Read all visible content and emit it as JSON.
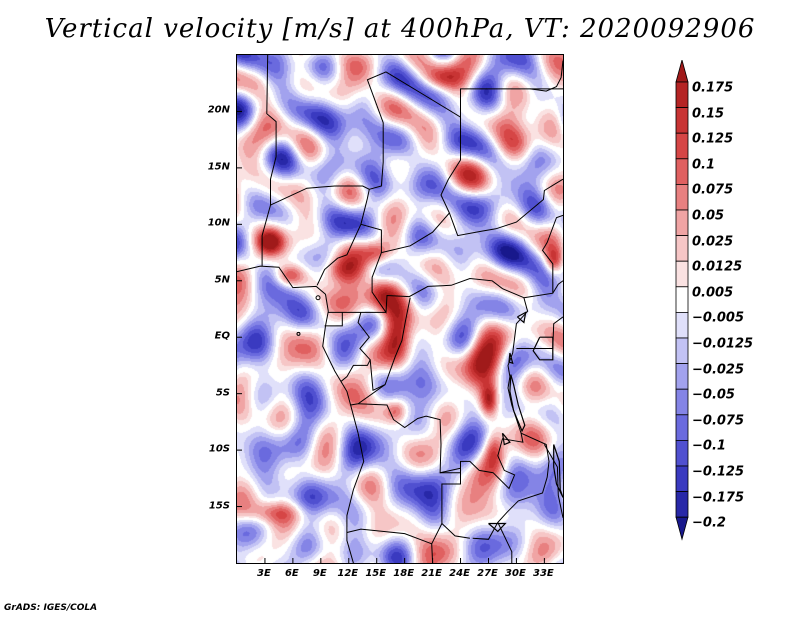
{
  "title": "Vertical velocity [m/s] at 400hPa, VT: 2020092906",
  "credit": "GrADS: IGES/COLA",
  "map": {
    "projection": "latlon",
    "lon_range": [
      0,
      35
    ],
    "lat_range": [
      -20,
      25
    ],
    "lat_ticks": [
      {
        "label": "20N",
        "value": 20
      },
      {
        "label": "15N",
        "value": 15
      },
      {
        "label": "10N",
        "value": 10
      },
      {
        "label": "5N",
        "value": 5
      },
      {
        "label": "EQ",
        "value": 0
      },
      {
        "label": "5S",
        "value": -5
      },
      {
        "label": "10S",
        "value": -10
      },
      {
        "label": "15S",
        "value": -15
      }
    ],
    "lon_ticks": [
      {
        "label": "3E",
        "value": 3
      },
      {
        "label": "6E",
        "value": 6
      },
      {
        "label": "9E",
        "value": 9
      },
      {
        "label": "12E",
        "value": 12
      },
      {
        "label": "15E",
        "value": 15
      },
      {
        "label": "18E",
        "value": 18
      },
      {
        "label": "21E",
        "value": 21
      },
      {
        "label": "24E",
        "value": 24
      },
      {
        "label": "27E",
        "value": 27
      },
      {
        "label": "30E",
        "value": 30
      },
      {
        "label": "33E",
        "value": 33
      }
    ]
  },
  "colorbar": {
    "labels": [
      "0.175",
      "0.15",
      "0.125",
      "0.1",
      "0.075",
      "0.05",
      "0.025",
      "0.0125",
      "0.005",
      "−0.005",
      "−0.0125",
      "−0.025",
      "−0.05",
      "−0.075",
      "−0.1",
      "−0.125",
      "−0.175",
      "−0.2"
    ],
    "colors": [
      "#a01a1a",
      "#b52424",
      "#c83434",
      "#d64646",
      "#e06060",
      "#e88080",
      "#f0a4a4",
      "#f6c6c6",
      "#fae2e2",
      "#ffffff",
      "#e0e0fa",
      "#c2c2f4",
      "#a2a2ee",
      "#8484e6",
      "#6a6ade",
      "#5050d0",
      "#3a3ac0",
      "#2828a8",
      "#18188c"
    ]
  },
  "features": {
    "positive_regions": [
      {
        "lon": 26.5,
        "lat": -1.8,
        "rx": 2.3,
        "ry": 2.0,
        "strength": 0.95
      },
      {
        "lon": 15.5,
        "lat": 3.8,
        "rx": 1.8,
        "ry": 1.6,
        "strength": 0.9
      },
      {
        "lon": 11.0,
        "lat": 6.0,
        "rx": 2.2,
        "ry": 1.3,
        "strength": 0.85
      },
      {
        "lon": 5.5,
        "lat": 5.5,
        "rx": 1.6,
        "ry": 1.0,
        "strength": 0.8
      },
      {
        "lon": 17.0,
        "lat": 0.5,
        "rx": 1.4,
        "ry": 2.2,
        "strength": 0.65
      },
      {
        "lon": 27.0,
        "lat": -5.5,
        "rx": 0.9,
        "ry": 1.4,
        "strength": 0.8
      },
      {
        "lon": 34.0,
        "lat": 6.8,
        "rx": 1.0,
        "ry": 1.2,
        "strength": 0.75
      },
      {
        "lon": 3.5,
        "lat": 8.5,
        "rx": 1.3,
        "ry": 1.0,
        "strength": 0.6
      },
      {
        "lon": 15.0,
        "lat": 7.5,
        "rx": 1.5,
        "ry": 1.0,
        "strength": 0.55
      },
      {
        "lon": 27.5,
        "lat": -10.0,
        "rx": 1.0,
        "ry": 1.6,
        "strength": 0.5
      },
      {
        "lon": 17.0,
        "lat": -6.5,
        "rx": 1.2,
        "ry": 1.0,
        "strength": 0.5
      },
      {
        "lon": 4.0,
        "lat": -15.5,
        "rx": 3.0,
        "ry": 1.0,
        "strength": 0.45
      },
      {
        "lon": 22.0,
        "lat": 23.0,
        "rx": 2.0,
        "ry": 1.0,
        "strength": 0.4
      },
      {
        "lon": 30.0,
        "lat": 17.0,
        "rx": 2.0,
        "ry": 1.5,
        "strength": 0.35
      }
    ],
    "negative_regions": [
      {
        "lon": 29.0,
        "lat": 10.0,
        "rx": 4.0,
        "ry": 4.0,
        "strength": 0.55
      },
      {
        "lon": 6.0,
        "lat": -10.0,
        "rx": 4.0,
        "ry": 4.0,
        "strength": 0.5
      },
      {
        "lon": 12.0,
        "lat": 17.0,
        "rx": 4.0,
        "ry": 3.0,
        "strength": 0.45
      },
      {
        "lon": 20.0,
        "lat": -13.5,
        "rx": 3.0,
        "ry": 3.0,
        "strength": 0.45
      },
      {
        "lon": 22.0,
        "lat": 9.0,
        "rx": 3.0,
        "ry": 2.5,
        "strength": 0.45
      },
      {
        "lon": 4.0,
        "lat": 2.0,
        "rx": 3.0,
        "ry": 2.0,
        "strength": 0.4
      },
      {
        "lon": 32.0,
        "lat": -14.0,
        "rx": 2.5,
        "ry": 3.0,
        "strength": 0.4
      },
      {
        "lon": 8.0,
        "lat": 20.0,
        "rx": 3.0,
        "ry": 3.0,
        "strength": 0.4
      }
    ]
  }
}
